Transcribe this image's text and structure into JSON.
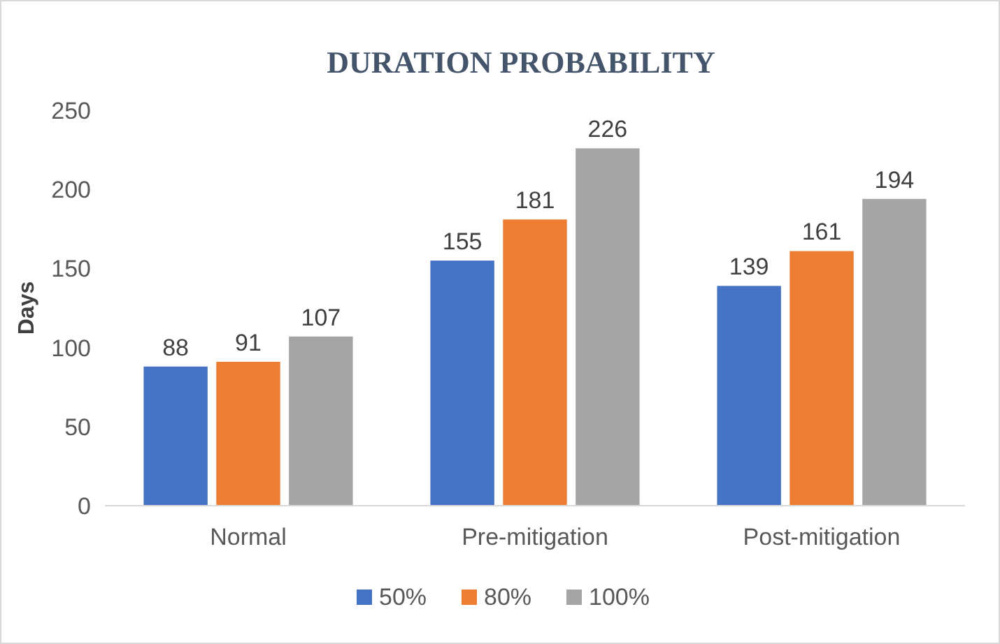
{
  "chart_data": {
    "type": "bar",
    "title": "DURATION PROBABILITY",
    "ylabel": "Days",
    "categories": [
      "Normal",
      "Pre-mitigation",
      "Post-mitigation"
    ],
    "series": [
      {
        "name": "50%",
        "color": "#4472c4",
        "values": [
          88,
          155,
          139
        ]
      },
      {
        "name": "80%",
        "color": "#ed7d31",
        "values": [
          91,
          181,
          161
        ]
      },
      {
        "name": "100%",
        "color": "#a5a5a5",
        "values": [
          107,
          226,
          194
        ]
      }
    ],
    "ylim": [
      0,
      250
    ],
    "yticks": [
      0,
      50,
      100,
      150,
      200,
      250
    ],
    "data_labels": true,
    "grid": false,
    "legend": "bottom"
  }
}
